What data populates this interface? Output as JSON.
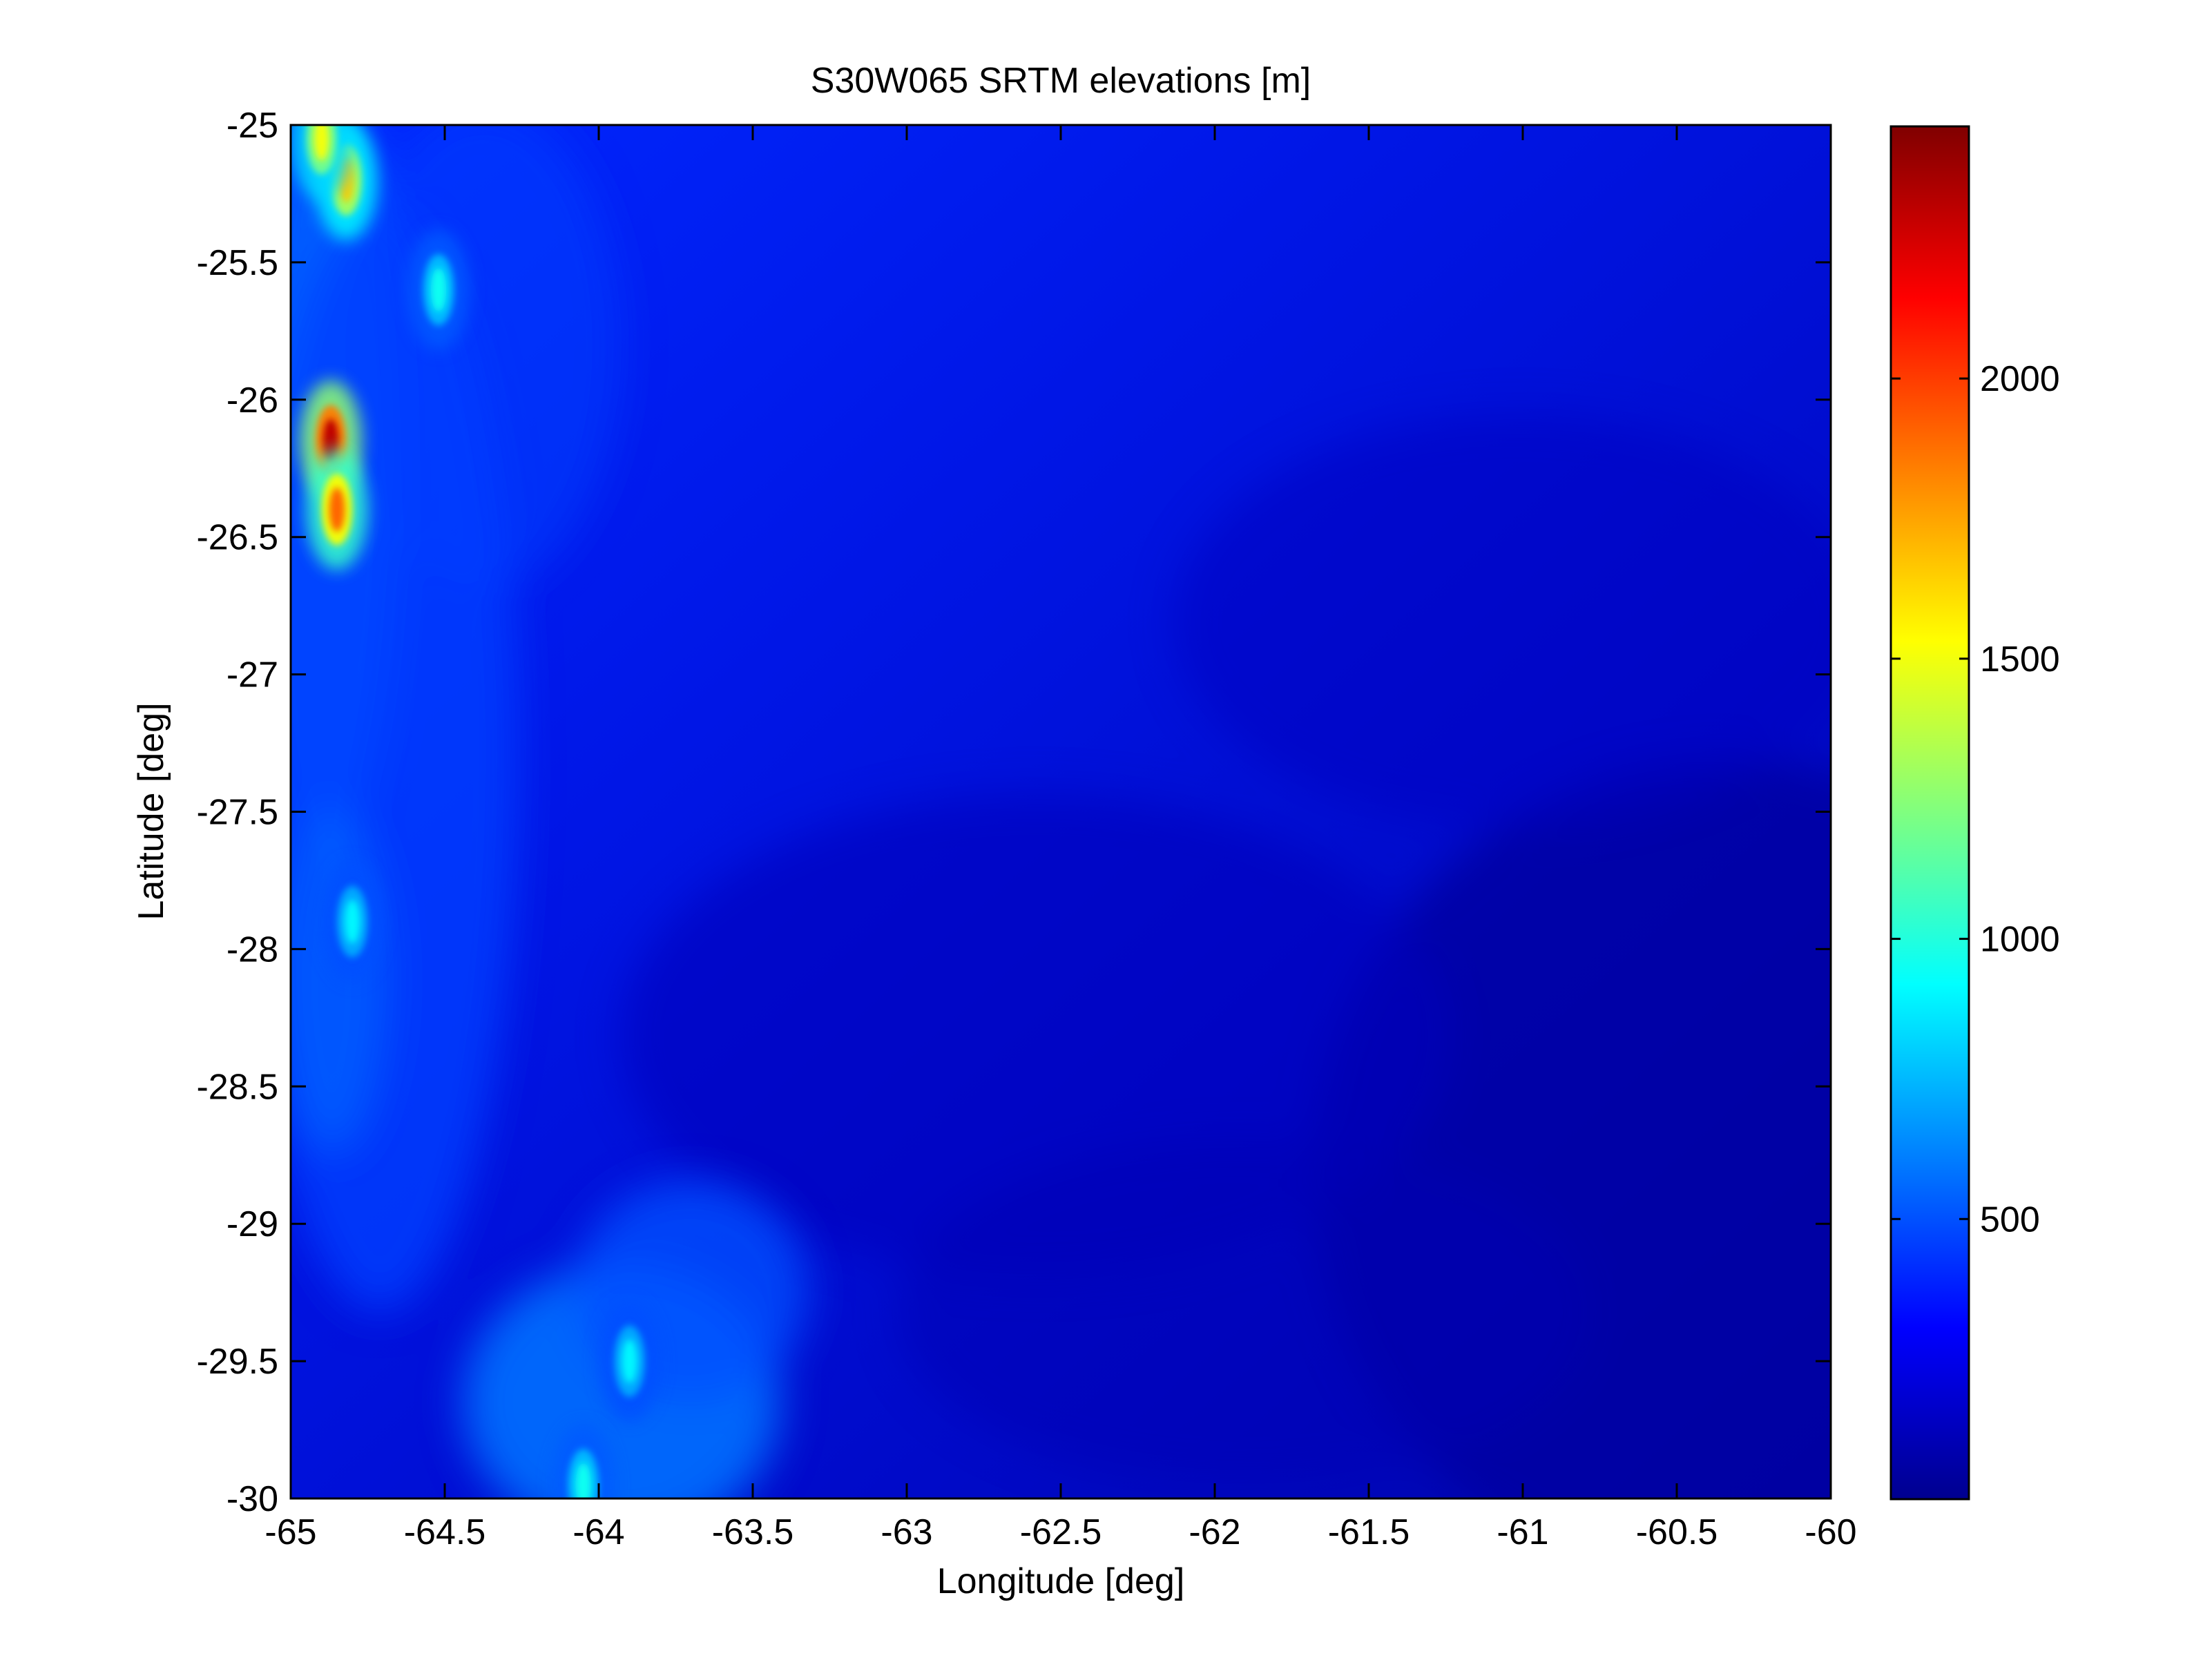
{
  "chart_data": {
    "type": "heatmap",
    "title": "S30W065 SRTM elevations [m]",
    "xlabel": "Longitude [deg]",
    "ylabel": "Latitude [deg]",
    "xlim": [
      -65,
      -60
    ],
    "ylim": [
      -30,
      -25
    ],
    "x_ticks": [
      -65,
      -64.5,
      -64,
      -63.5,
      -63,
      -62.5,
      -62,
      -61.5,
      -61,
      -60.5,
      -60
    ],
    "x_tick_labels": [
      "-65",
      "-64.5",
      "-64",
      "-63.5",
      "-63",
      "-62.5",
      "-62",
      "-61.5",
      "-61",
      "-60.5",
      "-60"
    ],
    "y_ticks": [
      -25,
      -25.5,
      -26,
      -26.5,
      -27,
      -27.5,
      -28,
      -28.5,
      -29,
      -29.5,
      -30
    ],
    "y_tick_labels": [
      "-25",
      "-25.5",
      "-26",
      "-26.5",
      "-27",
      "-27.5",
      "-28",
      "-28.5",
      "-29",
      "-29.5",
      "-30"
    ],
    "colormap": "jet",
    "colorbar": {
      "range": [
        0,
        2450
      ],
      "ticks": [
        500,
        1000,
        1500,
        2000
      ],
      "tick_labels": [
        "500",
        "1000",
        "1500",
        "2000"
      ]
    },
    "grid": false,
    "features": [
      {
        "lon": -64.87,
        "lat": -26.15,
        "elevation": 2300
      },
      {
        "lon": -64.85,
        "lat": -26.4,
        "elevation": 1900
      },
      {
        "lon": -64.82,
        "lat": -25.2,
        "elevation": 1650
      },
      {
        "lon": -64.9,
        "lat": -25.05,
        "elevation": 1500
      },
      {
        "lon": -64.52,
        "lat": -25.6,
        "elevation": 950
      },
      {
        "lon": -64.8,
        "lat": -27.9,
        "elevation": 900
      },
      {
        "lon": -63.9,
        "lat": -29.5,
        "elevation": 900
      },
      {
        "lon": -64.05,
        "lat": -29.95,
        "elevation": 950
      }
    ]
  }
}
